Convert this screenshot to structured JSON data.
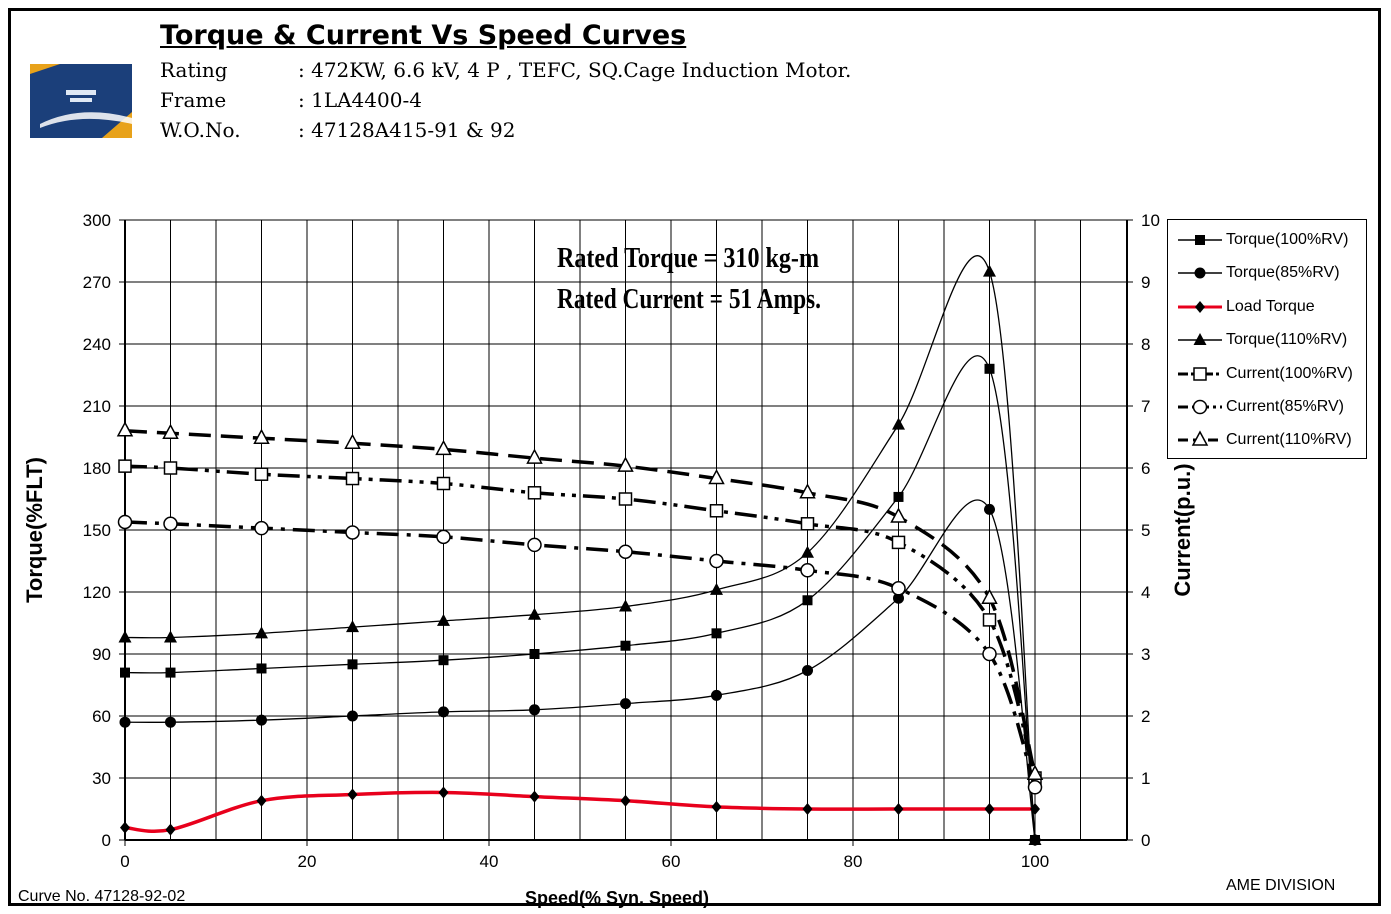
{
  "header": {
    "title": "Torque & Current Vs Speed Curves",
    "specs": [
      {
        "label": "Rating",
        "value": ": 472KW, 6.6 kV, 4 P , TEFC,  SQ.Cage Induction  Motor."
      },
      {
        "label": "Frame",
        "value": ": 1LA4400-4"
      },
      {
        "label": "W.O.No.",
        "value": ": 47128A415-91 & 92"
      }
    ]
  },
  "footer": {
    "curve_no": "Curve  No.  47128-92-02",
    "division": "AME DIVISION"
  },
  "colors": {
    "load_torque": "#e8001c",
    "series": "#000000",
    "logo_bg": "#1b3f7a",
    "logo_accent": "#e8a21a"
  },
  "chart_data": {
    "type": "line",
    "xlabel": "Speed(% Syn. Speed)",
    "ylabel": "Torque(%FLT)",
    "y2label": "Current(p.u.)",
    "xlim": [
      0,
      100
    ],
    "ylim": [
      0,
      300
    ],
    "y2lim": [
      0,
      10
    ],
    "xticks": [
      "0",
      "20",
      "40",
      "60",
      "80",
      "100"
    ],
    "yticks": [
      "0",
      "30",
      "60",
      "90",
      "120",
      "150",
      "180",
      "210",
      "240",
      "270",
      "300"
    ],
    "y2ticks": [
      "0",
      "1",
      "2",
      "3",
      "4",
      "5",
      "6",
      "7",
      "8",
      "9",
      "10"
    ],
    "grid": true,
    "legend_position": "right",
    "annotations": [
      "Rated Torque = 310 kg-m",
      "Rated Current = 51 Amps."
    ],
    "series": [
      {
        "name": "Torque(100%RV)",
        "axis": "left",
        "marker": "square-filled",
        "style": "solid",
        "x": [
          0,
          5,
          15,
          25,
          35,
          45,
          55,
          65,
          75,
          85,
          95,
          100
        ],
        "y": [
          81,
          81,
          83,
          85,
          87,
          90,
          94,
          100,
          116,
          166,
          228,
          0
        ]
      },
      {
        "name": "Torque(85%RV)",
        "axis": "left",
        "marker": "circle-filled",
        "style": "solid",
        "x": [
          0,
          5,
          15,
          25,
          35,
          45,
          55,
          65,
          75,
          85,
          95,
          100
        ],
        "y": [
          57,
          57,
          58,
          60,
          62,
          63,
          66,
          70,
          82,
          117,
          160,
          0
        ]
      },
      {
        "name": "Load Torque",
        "axis": "left",
        "marker": "diamond-filled",
        "style": "red",
        "x": [
          0,
          5,
          15,
          25,
          35,
          45,
          55,
          65,
          75,
          85,
          95,
          100
        ],
        "y": [
          6,
          5,
          19,
          22,
          23,
          21,
          19,
          16,
          15,
          15,
          15,
          15
        ]
      },
      {
        "name": "Torque(110%RV)",
        "axis": "left",
        "marker": "triangle-filled",
        "style": "solid",
        "x": [
          0,
          5,
          15,
          25,
          35,
          45,
          55,
          65,
          75,
          85,
          95,
          100
        ],
        "y": [
          98,
          98,
          100,
          103,
          106,
          109,
          113,
          121,
          139,
          201,
          275,
          0
        ]
      },
      {
        "name": "Current(100%RV)",
        "axis": "right",
        "marker": "square-open",
        "style": "dash-dot-dot",
        "x": [
          0,
          5,
          15,
          25,
          35,
          45,
          55,
          65,
          75,
          85,
          95,
          100
        ],
        "y": [
          6.03,
          6.0,
          5.9,
          5.83,
          5.75,
          5.6,
          5.5,
          5.31,
          5.1,
          4.8,
          3.55,
          1.0
        ]
      },
      {
        "name": "Current(85%RV)",
        "axis": "right",
        "marker": "circle-open",
        "style": "dash-dot",
        "x": [
          0,
          5,
          15,
          25,
          35,
          45,
          55,
          65,
          75,
          85,
          95,
          100
        ],
        "y": [
          5.13,
          5.1,
          5.03,
          4.96,
          4.89,
          4.76,
          4.65,
          4.5,
          4.35,
          4.06,
          3.0,
          0.85
        ]
      },
      {
        "name": "Current(110%RV)",
        "axis": "right",
        "marker": "triangle-open",
        "style": "dash",
        "x": [
          0,
          5,
          15,
          25,
          35,
          45,
          55,
          65,
          75,
          85,
          95,
          100
        ],
        "y": [
          6.6,
          6.56,
          6.48,
          6.4,
          6.3,
          6.16,
          6.03,
          5.83,
          5.6,
          5.21,
          3.9,
          1.06
        ]
      }
    ]
  }
}
